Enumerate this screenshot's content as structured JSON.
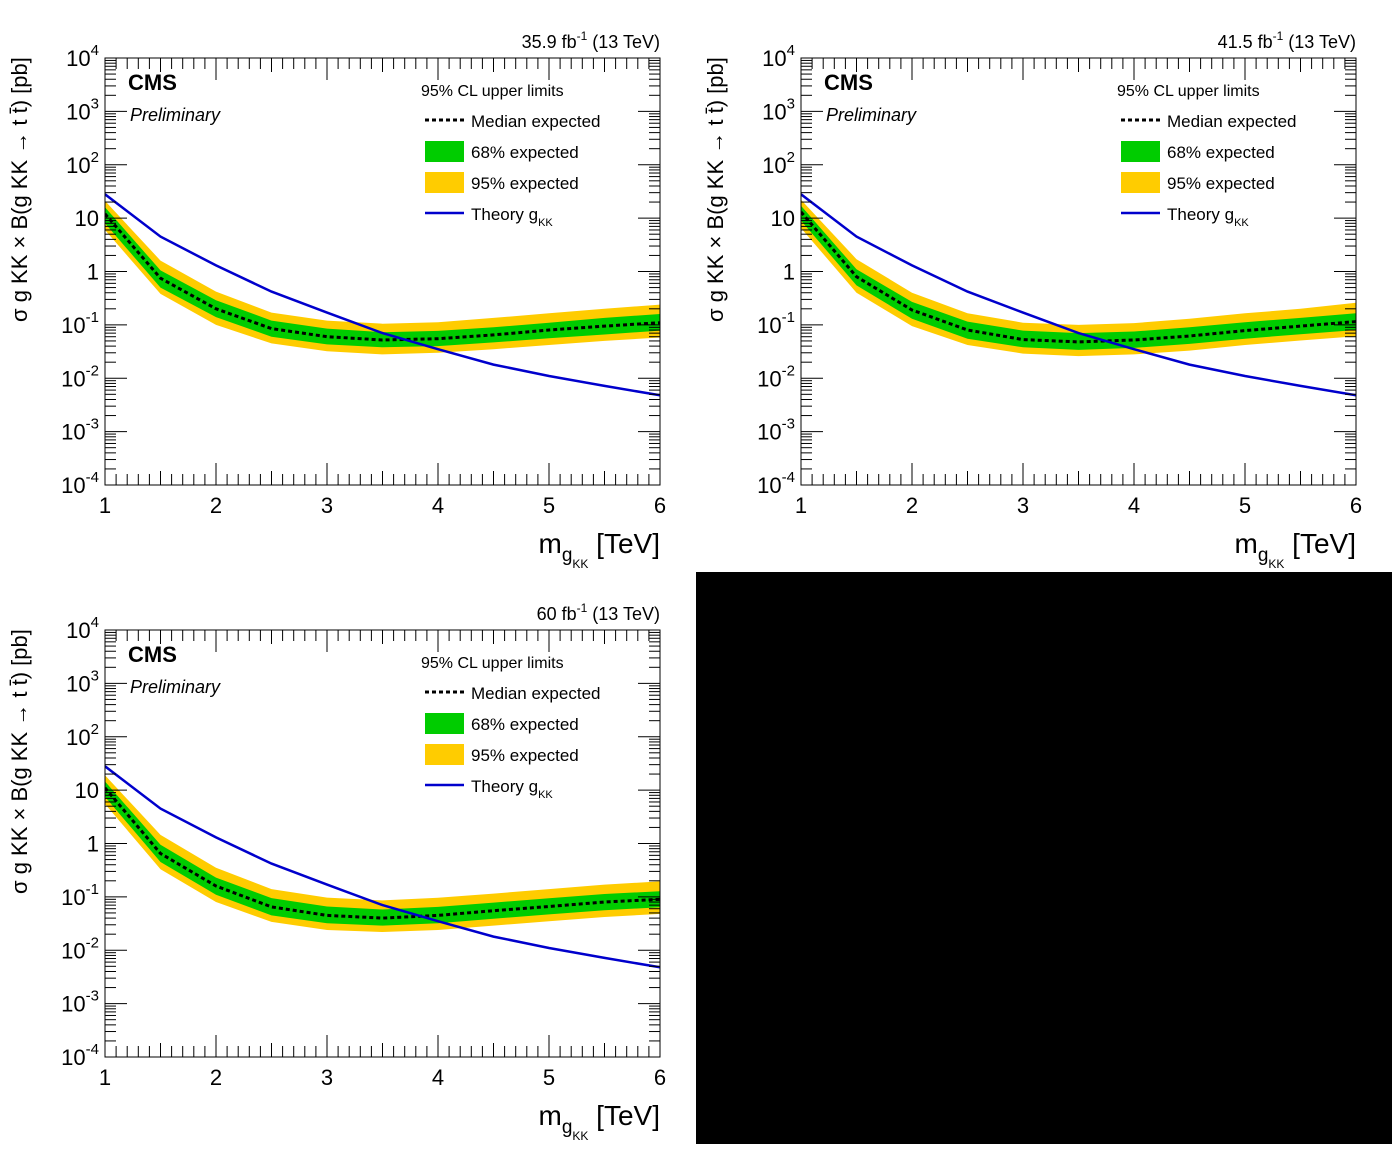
{
  "chart_data": [
    {
      "type": "line",
      "lumi_label": "35.9 fb",
      "lumi_sup": "-1",
      "energy_label": " (13 TeV)",
      "experiment": "CMS",
      "status": "Preliminary",
      "xlabel_main": "m",
      "xlabel_sub1": "g",
      "xlabel_sub2": "KK",
      "xlabel_unit": "[TeV]",
      "ylabel": "σ g KK × B(g KK → t t̄) [pb]",
      "xlim": [
        1,
        6
      ],
      "ylim": [
        0.0001,
        10000
      ],
      "yscale": "log",
      "x_ticks": [
        "1",
        "2",
        "3",
        "4",
        "5",
        "6"
      ],
      "y_ticks": [
        {
          "base": "10",
          "exp": "-4",
          "value": 0.0001
        },
        {
          "base": "10",
          "exp": "-3",
          "value": 0.001
        },
        {
          "base": "10",
          "exp": "-2",
          "value": 0.01
        },
        {
          "base": "10",
          "exp": "-1",
          "value": 0.1
        },
        {
          "base": "1",
          "exp": "",
          "value": 1
        },
        {
          "base": "10",
          "exp": "",
          "value": 10
        },
        {
          "base": "10",
          "exp": "2",
          "value": 100
        },
        {
          "base": "10",
          "exp": "3",
          "value": 1000
        },
        {
          "base": "10",
          "exp": "4",
          "value": 10000
        }
      ],
      "legend": {
        "header": "95% CL upper limits",
        "median": "Median expected",
        "band68": "68% expected",
        "band95": "95% expected",
        "theory": "Theory g",
        "theory_sub": "KK",
        "position": "top-right"
      },
      "colors": {
        "band68": "#00cc00",
        "band95": "#ffcc00",
        "theory": "#0000cc",
        "median": "#000000"
      },
      "x": [
        1.0,
        1.5,
        2.0,
        2.5,
        3.0,
        3.5,
        4.0,
        4.5,
        5.0,
        5.5,
        6.0
      ],
      "median": [
        12,
        0.75,
        0.2,
        0.085,
        0.06,
        0.052,
        0.055,
        0.065,
        0.08,
        0.095,
        0.11
      ],
      "band68_low": [
        8,
        0.5,
        0.14,
        0.06,
        0.043,
        0.038,
        0.04,
        0.047,
        0.056,
        0.066,
        0.078
      ],
      "band68_high": [
        16,
        1.05,
        0.29,
        0.12,
        0.085,
        0.073,
        0.077,
        0.09,
        0.11,
        0.135,
        0.16
      ],
      "band95_low": [
        6,
        0.38,
        0.1,
        0.045,
        0.032,
        0.028,
        0.03,
        0.035,
        0.042,
        0.05,
        0.058
      ],
      "band95_high": [
        21,
        1.6,
        0.42,
        0.17,
        0.12,
        0.105,
        0.112,
        0.135,
        0.165,
        0.2,
        0.24
      ],
      "theory_x": [
        1.0,
        1.5,
        2.0,
        2.5,
        3.0,
        3.5,
        4.0,
        4.5,
        5.0,
        5.5,
        6.0
      ],
      "theory_y": [
        28,
        4.5,
        1.3,
        0.42,
        0.17,
        0.07,
        0.035,
        0.018,
        0.011,
        0.0072,
        0.0048
      ]
    },
    {
      "type": "line",
      "lumi_label": "41.5 fb",
      "lumi_sup": "-1",
      "energy_label": " (13 TeV)",
      "experiment": "CMS",
      "status": "Preliminary",
      "xlabel_main": "m",
      "xlabel_sub1": "g",
      "xlabel_sub2": "KK",
      "xlabel_unit": "[TeV]",
      "ylabel": "σ g KK × B(g KK → t t̄) [pb]",
      "xlim": [
        1,
        6
      ],
      "ylim": [
        0.0001,
        10000
      ],
      "yscale": "log",
      "x_ticks": [
        "1",
        "2",
        "3",
        "4",
        "5",
        "6"
      ],
      "y_ticks": [
        {
          "base": "10",
          "exp": "-4",
          "value": 0.0001
        },
        {
          "base": "10",
          "exp": "-3",
          "value": 0.001
        },
        {
          "base": "10",
          "exp": "-2",
          "value": 0.01
        },
        {
          "base": "10",
          "exp": "-1",
          "value": 0.1
        },
        {
          "base": "1",
          "exp": "",
          "value": 1
        },
        {
          "base": "10",
          "exp": "",
          "value": 10
        },
        {
          "base": "10",
          "exp": "2",
          "value": 100
        },
        {
          "base": "10",
          "exp": "3",
          "value": 1000
        },
        {
          "base": "10",
          "exp": "4",
          "value": 10000
        }
      ],
      "legend": {
        "header": "95% CL upper limits",
        "median": "Median expected",
        "band68": "68% expected",
        "band95": "95% expected",
        "theory": "Theory g",
        "theory_sub": "KK",
        "position": "top-right"
      },
      "colors": {
        "band68": "#00cc00",
        "band95": "#ffcc00",
        "theory": "#0000cc",
        "median": "#000000"
      },
      "x": [
        1.0,
        1.5,
        2.0,
        2.5,
        3.0,
        3.5,
        4.0,
        4.5,
        5.0,
        5.5,
        6.0
      ],
      "median": [
        13,
        0.8,
        0.19,
        0.08,
        0.053,
        0.048,
        0.052,
        0.062,
        0.078,
        0.095,
        0.115
      ],
      "band68_low": [
        9,
        0.55,
        0.13,
        0.055,
        0.038,
        0.034,
        0.037,
        0.044,
        0.055,
        0.067,
        0.08
      ],
      "band68_high": [
        17,
        1.1,
        0.27,
        0.115,
        0.078,
        0.07,
        0.075,
        0.09,
        0.112,
        0.135,
        0.165
      ],
      "band95_low": [
        6.5,
        0.4,
        0.095,
        0.042,
        0.029,
        0.026,
        0.028,
        0.033,
        0.042,
        0.051,
        0.061
      ],
      "band95_high": [
        22,
        1.7,
        0.4,
        0.165,
        0.11,
        0.1,
        0.108,
        0.13,
        0.165,
        0.2,
        0.26
      ],
      "theory_x": [
        1.0,
        1.5,
        2.0,
        2.5,
        3.0,
        3.5,
        4.0,
        4.5,
        5.0,
        5.5,
        6.0
      ],
      "theory_y": [
        28,
        4.5,
        1.3,
        0.42,
        0.17,
        0.07,
        0.035,
        0.018,
        0.011,
        0.0072,
        0.0048
      ]
    },
    {
      "type": "line",
      "lumi_label": "60 fb",
      "lumi_sup": "-1",
      "energy_label": " (13 TeV)",
      "experiment": "CMS",
      "status": "Preliminary",
      "xlabel_main": "m",
      "xlabel_sub1": "g",
      "xlabel_sub2": "KK",
      "xlabel_unit": "[TeV]",
      "ylabel": "σ g KK × B(g KK → t t̄) [pb]",
      "xlim": [
        1,
        6
      ],
      "ylim": [
        0.0001,
        10000
      ],
      "yscale": "log",
      "x_ticks": [
        "1",
        "2",
        "3",
        "4",
        "5",
        "6"
      ],
      "y_ticks": [
        {
          "base": "10",
          "exp": "-4",
          "value": 0.0001
        },
        {
          "base": "10",
          "exp": "-3",
          "value": 0.001
        },
        {
          "base": "10",
          "exp": "-2",
          "value": 0.01
        },
        {
          "base": "10",
          "exp": "-1",
          "value": 0.1
        },
        {
          "base": "1",
          "exp": "",
          "value": 1
        },
        {
          "base": "10",
          "exp": "",
          "value": 10
        },
        {
          "base": "10",
          "exp": "2",
          "value": 100
        },
        {
          "base": "10",
          "exp": "3",
          "value": 1000
        },
        {
          "base": "10",
          "exp": "4",
          "value": 10000
        }
      ],
      "legend": {
        "header": "95% CL upper limits",
        "median": "Median expected",
        "band68": "68% expected",
        "band95": "95% expected",
        "theory": "Theory g",
        "theory_sub": "KK",
        "position": "top-right"
      },
      "colors": {
        "band68": "#00cc00",
        "band95": "#ffcc00",
        "theory": "#0000cc",
        "median": "#000000"
      },
      "x": [
        1.0,
        1.5,
        2.0,
        2.5,
        3.0,
        3.5,
        4.0,
        4.5,
        5.0,
        5.5,
        6.0
      ],
      "median": [
        11,
        0.65,
        0.16,
        0.065,
        0.045,
        0.04,
        0.045,
        0.055,
        0.066,
        0.08,
        0.09
      ],
      "band68_low": [
        7.5,
        0.45,
        0.11,
        0.045,
        0.032,
        0.029,
        0.032,
        0.039,
        0.047,
        0.056,
        0.064
      ],
      "band68_high": [
        14.5,
        0.95,
        0.23,
        0.095,
        0.066,
        0.058,
        0.065,
        0.078,
        0.094,
        0.113,
        0.128
      ],
      "band95_low": [
        5.5,
        0.33,
        0.08,
        0.034,
        0.024,
        0.022,
        0.024,
        0.029,
        0.035,
        0.042,
        0.048
      ],
      "band95_high": [
        19,
        1.45,
        0.35,
        0.14,
        0.097,
        0.086,
        0.096,
        0.115,
        0.14,
        0.17,
        0.195
      ],
      "theory_x": [
        1.0,
        1.5,
        2.0,
        2.5,
        3.0,
        3.5,
        4.0,
        4.5,
        5.0,
        5.5,
        6.0
      ],
      "theory_y": [
        28,
        4.5,
        1.3,
        0.42,
        0.17,
        0.07,
        0.035,
        0.018,
        0.011,
        0.0072,
        0.0048
      ]
    }
  ]
}
